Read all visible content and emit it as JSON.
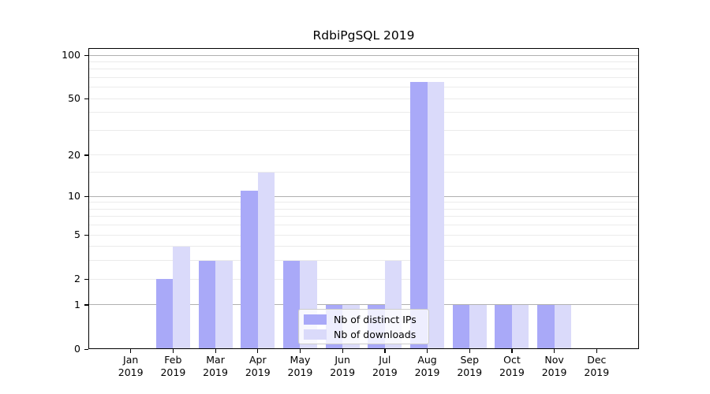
{
  "chart_data": {
    "type": "bar",
    "title": "RdbiPgSQL 2019",
    "categories": [
      "Jan",
      "Feb",
      "Mar",
      "Apr",
      "May",
      "Jun",
      "Jul",
      "Aug",
      "Sep",
      "Oct",
      "Nov",
      "Dec"
    ],
    "x_tick_second_line": "2019",
    "series": [
      {
        "name": "Nb of distinct IPs",
        "color": "#a9a9f8",
        "values": [
          0,
          2,
          3,
          11,
          3,
          1,
          1,
          65,
          1,
          1,
          1,
          0
        ]
      },
      {
        "name": "Nb of downloads",
        "color": "#dadafa",
        "values": [
          0,
          4,
          3,
          15,
          3,
          1,
          3,
          65,
          1,
          1,
          1,
          0
        ]
      }
    ],
    "xlabel": "",
    "ylabel": "",
    "y_scale": "log1p",
    "ylim": [
      0,
      112
    ],
    "y_ticks": [
      0,
      1,
      2,
      5,
      10,
      20,
      50,
      100
    ],
    "y_major_gridlines": [
      1,
      10,
      100
    ],
    "y_minor_gridlines": [
      2,
      3,
      4,
      5,
      6,
      7,
      8,
      9,
      15,
      20,
      30,
      40,
      50,
      60,
      70,
      80,
      90
    ],
    "grid_major_color": "#b0b0b0",
    "grid_minor_color": "#ebebeb",
    "legend": {
      "position": "lower center inside plot",
      "entries": [
        "Nb of distinct IPs",
        "Nb of downloads"
      ]
    }
  }
}
